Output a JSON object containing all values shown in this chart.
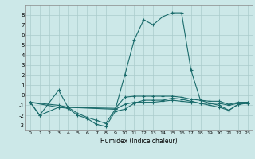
{
  "xlabel": "Humidex (Indice chaleur)",
  "xlim": [
    -0.5,
    23.5
  ],
  "ylim": [
    -3.5,
    9.0
  ],
  "yticks": [
    -3,
    -2,
    -1,
    0,
    1,
    2,
    3,
    4,
    5,
    6,
    7,
    8
  ],
  "xticks": [
    0,
    1,
    2,
    3,
    4,
    5,
    6,
    7,
    8,
    9,
    10,
    11,
    12,
    13,
    14,
    15,
    16,
    17,
    18,
    19,
    20,
    21,
    22,
    23
  ],
  "bg_color": "#cce8e8",
  "grid_color": "#aacccc",
  "line_color": "#1a6b6b",
  "line1_x": [
    0,
    1,
    3,
    4,
    5,
    6,
    7,
    8,
    9,
    10,
    11,
    12,
    13,
    14,
    15,
    16,
    17,
    18,
    19,
    20,
    21,
    22,
    23
  ],
  "line1_y": [
    -0.7,
    -2.0,
    0.5,
    -1.2,
    -1.8,
    -2.2,
    -2.5,
    -2.8,
    -1.4,
    2.0,
    5.5,
    7.5,
    7.0,
    7.8,
    8.2,
    8.2,
    2.5,
    -0.5,
    -0.8,
    -1.0,
    -1.5,
    -0.9,
    -0.8
  ],
  "line2_x": [
    0,
    1,
    3,
    4,
    5,
    6,
    7,
    8,
    9,
    10,
    11,
    12,
    13,
    14,
    15,
    16,
    17,
    18,
    19,
    20,
    21,
    22,
    23
  ],
  "line2_y": [
    -0.7,
    -2.0,
    -1.2,
    -1.3,
    -2.0,
    -2.3,
    -2.9,
    -3.1,
    -1.6,
    -1.4,
    -0.8,
    -0.5,
    -0.5,
    -0.5,
    -0.3,
    -0.4,
    -0.6,
    -0.8,
    -1.0,
    -1.2,
    -1.5,
    -0.9,
    -0.8
  ],
  "line3_x": [
    0,
    3,
    4,
    9,
    10,
    11,
    12,
    13,
    14,
    15,
    16,
    17,
    18,
    19,
    20,
    21,
    22,
    23
  ],
  "line3_y": [
    -0.7,
    -1.0,
    -1.2,
    -1.3,
    -0.2,
    -0.1,
    -0.1,
    -0.1,
    -0.1,
    -0.1,
    -0.2,
    -0.4,
    -0.5,
    -0.6,
    -0.6,
    -0.9,
    -0.7,
    -0.7
  ],
  "line4_x": [
    0,
    3,
    4,
    9,
    10,
    11,
    12,
    13,
    14,
    15,
    16,
    17,
    18,
    19,
    20,
    21,
    22,
    23
  ],
  "line4_y": [
    -0.7,
    -1.2,
    -1.2,
    -1.4,
    -0.9,
    -0.7,
    -0.7,
    -0.7,
    -0.6,
    -0.5,
    -0.6,
    -0.7,
    -0.8,
    -0.8,
    -0.8,
    -1.0,
    -0.8,
    -0.7
  ]
}
